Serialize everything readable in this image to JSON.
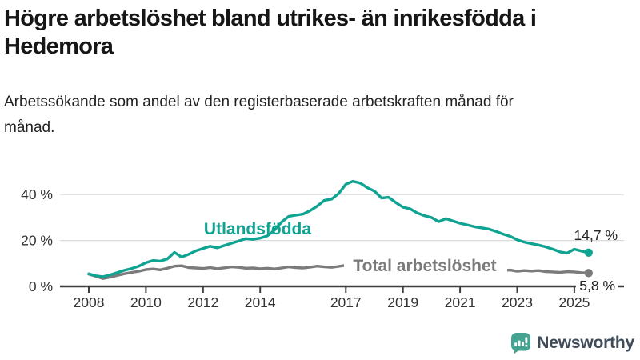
{
  "header": {
    "title": "Högre arbetslöshet bland utrikes- än inrikesfödda i Hedemora",
    "subtitle": "Arbetssökande som andel av den registerbaserade arbetskraften månad för månad."
  },
  "branding": {
    "logo_text": "Newsworthy",
    "logo_icon": "speech-bubble-bar-chart-icon",
    "icon_color": "#45a392",
    "wordmark_color": "#3e4b59"
  },
  "chart_data": {
    "type": "line",
    "title": "Högre arbetslöshet bland utrikes- än inrikesfödda i Hedemora",
    "subtitle": "Arbetssökande som andel av den registerbaserade arbetskraften månad för månad.",
    "unit": "%",
    "grid": "horizontal",
    "legend_position": "inline-labels",
    "xlim": [
      2007,
      2026.7
    ],
    "ylim": [
      0,
      50
    ],
    "x_ticks": [
      2008,
      2010,
      2012,
      2014,
      2017,
      2019,
      2021,
      2023,
      2025
    ],
    "x_tick_labels": [
      "2008",
      "2010",
      "2012",
      "2014",
      "2017",
      "2019",
      "2021",
      "2023",
      "2025"
    ],
    "y_ticks": [
      0,
      20,
      40
    ],
    "y_tick_labels": [
      "0 %",
      "20 %",
      "40 %"
    ],
    "colors": {
      "gridline": "#dbdbdb",
      "axis": "#3d3d3d",
      "tick_text": "#333333",
      "end_label_text": "#222222"
    },
    "series": [
      {
        "name": "Total arbetslöshet",
        "label": "Total arbetslöshet",
        "color": "#7b7b7b",
        "end_value": 5.8,
        "end_label": "5,8 %",
        "x_start": 2008,
        "x_step": 0.25,
        "values": [
          5.3,
          4.4,
          3.4,
          4.0,
          4.8,
          5.5,
          6.1,
          6.6,
          7.3,
          7.6,
          7.2,
          7.9,
          8.8,
          9.0,
          8.2,
          8.0,
          7.8,
          8.2,
          7.7,
          8.1,
          8.5,
          8.3,
          7.9,
          8.0,
          7.7,
          7.9,
          7.6,
          8.0,
          8.5,
          8.2,
          8.0,
          8.4,
          8.8,
          8.5,
          8.3,
          8.7,
          9.2,
          9.4,
          8.9,
          8.7,
          8.4,
          8.1,
          7.9,
          8.2,
          8.0,
          7.8,
          7.6,
          8.0,
          8.3,
          9.3,
          9.6,
          9.2,
          8.8,
          8.4,
          8.0,
          7.8,
          7.4,
          7.2,
          7.0,
          7.1,
          6.6,
          6.9,
          6.7,
          6.9,
          6.4,
          6.3,
          6.1,
          6.4,
          6.3,
          6.0,
          5.8
        ]
      },
      {
        "name": "Utlandsfödda",
        "label": "Utlandsfödda",
        "color": "#0fa392",
        "end_value": 14.7,
        "end_label": "14,7 %",
        "x_start": 2008,
        "x_step": 0.25,
        "values": [
          5.5,
          4.6,
          4.2,
          5.0,
          6.0,
          7.0,
          7.8,
          8.8,
          10.3,
          11.3,
          11.0,
          12.0,
          14.8,
          12.8,
          14.0,
          15.5,
          16.5,
          17.5,
          16.8,
          17.8,
          18.8,
          19.8,
          20.8,
          20.5,
          21.0,
          22.0,
          24.5,
          28.0,
          30.5,
          31.0,
          31.5,
          33.0,
          35.0,
          37.5,
          38.0,
          40.5,
          44.5,
          45.8,
          45.0,
          43.0,
          41.5,
          38.5,
          38.8,
          36.5,
          34.5,
          33.8,
          32.0,
          30.8,
          30.0,
          28.2,
          29.5,
          28.5,
          27.5,
          26.8,
          26.0,
          25.5,
          25.0,
          24.0,
          22.8,
          21.8,
          20.3,
          19.3,
          18.6,
          18.0,
          17.2,
          16.2,
          15.0,
          14.5,
          16.2,
          15.4,
          14.7
        ]
      }
    ]
  }
}
